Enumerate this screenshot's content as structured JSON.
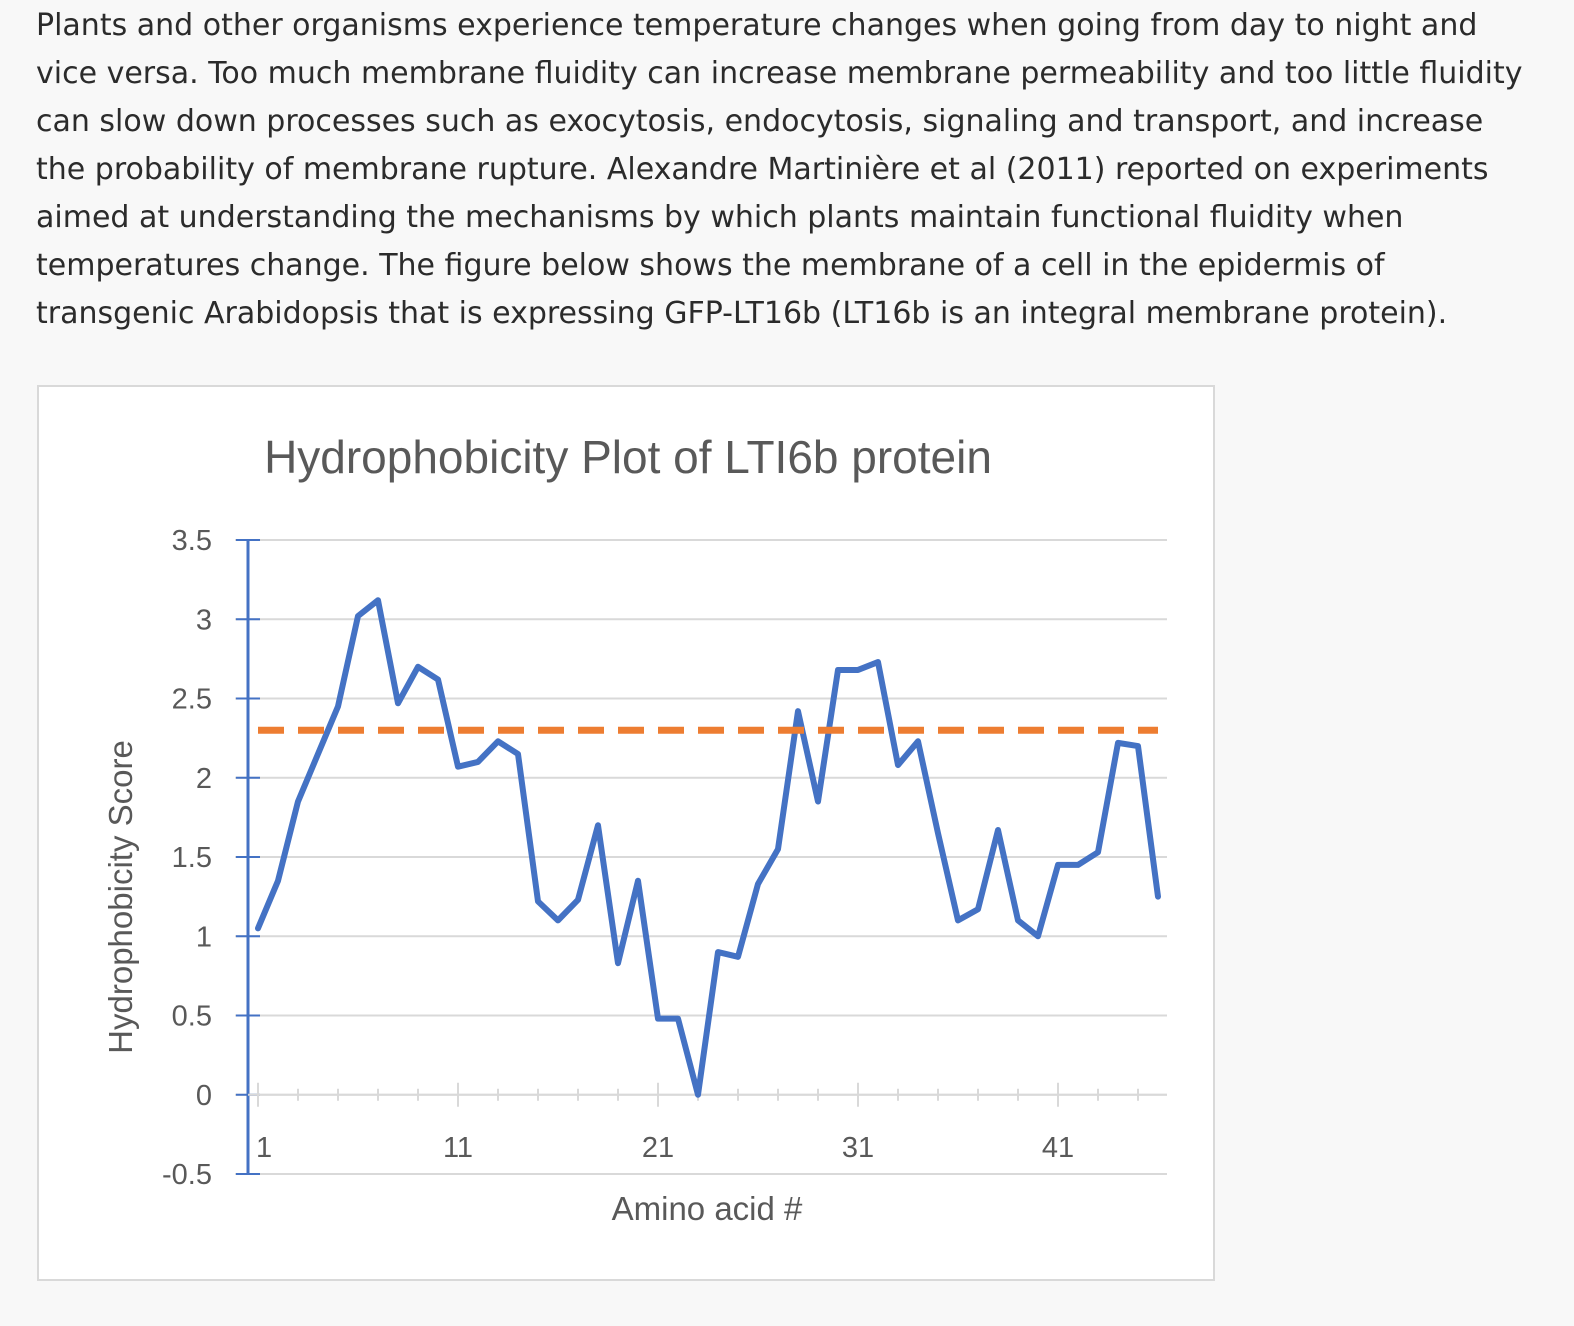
{
  "intro_text": "Plants and other organisms experience temperature changes when going from day to night and vice versa. Too much membrane fluidity can increase membrane permeability and too little fluidity can slow down processes such as exocytosis, endocytosis, signaling and transport, and increase the probability of membrane rupture. Alexandre Martinière et al (2011) reported on experiments aimed at understanding the mechanisms by which plants maintain functional fluidity when temperatures change. The figure below shows the membrane of a cell in the epidermis of transgenic Arabidopsis that is expressing GFP-LT16b (LT16b is an integral membrane protein).",
  "colors": {
    "series_line": "#4472c4",
    "threshold_line": "#ed7d31",
    "gridline": "#d9d9d9",
    "text": "#595959",
    "axis": "#4472c4"
  },
  "chart_data": {
    "type": "line",
    "title": "Hydrophobicity Plot of LTI6b protein",
    "xlabel": "Amino acid #",
    "ylabel": "Hydrophobicity Score",
    "ylim": [
      -0.5,
      3.5
    ],
    "yticks": [
      "3.5",
      "3",
      "2.5",
      "2",
      "1.5",
      "1",
      "0.5",
      "0",
      "-0.5"
    ],
    "xticks": [
      "1",
      "11",
      "21",
      "31",
      "41"
    ],
    "xtick_values": [
      1,
      11,
      21,
      31,
      41
    ],
    "grid": true,
    "x": [
      1,
      2,
      3,
      4,
      5,
      6,
      7,
      8,
      9,
      10,
      11,
      12,
      13,
      14,
      15,
      16,
      17,
      18,
      19,
      20,
      21,
      22,
      23,
      24,
      25,
      26,
      27,
      28,
      29,
      30,
      31,
      32,
      33,
      34,
      35,
      36,
      37,
      38,
      39,
      40,
      41,
      42,
      43,
      44,
      45,
      46
    ],
    "series": [
      {
        "values": [
          1.05,
          1.35,
          1.85,
          2.15,
          2.45,
          3.02,
          3.12,
          2.47,
          2.7,
          2.62,
          2.07,
          2.1,
          2.23,
          2.15,
          1.22,
          1.1,
          1.23,
          1.7,
          0.83,
          1.35,
          0.48,
          0.48,
          0.0,
          0.9,
          0.87,
          1.33,
          1.55,
          2.42,
          1.85,
          2.68,
          2.68,
          2.73,
          2.08,
          2.23,
          1.65,
          1.1,
          1.17,
          1.67,
          1.1,
          1.0,
          1.45,
          1.45,
          1.53,
          2.22,
          2.2,
          1.25
        ]
      },
      {
        "values": [
          2.3,
          2.3,
          2.3,
          2.3,
          2.3,
          2.3,
          2.3,
          2.3,
          2.3,
          2.3,
          2.3,
          2.3,
          2.3,
          2.3,
          2.3,
          2.3,
          2.3,
          2.3,
          2.3,
          2.3,
          2.3,
          2.3,
          2.3,
          2.3,
          2.3,
          2.3,
          2.3,
          2.3,
          2.3,
          2.3,
          2.3,
          2.3,
          2.3,
          2.3,
          2.3,
          2.3,
          2.3,
          2.3,
          2.3,
          2.3,
          2.3,
          2.3,
          2.3,
          2.3,
          2.3,
          2.3
        ],
        "style": "dashed"
      }
    ]
  }
}
